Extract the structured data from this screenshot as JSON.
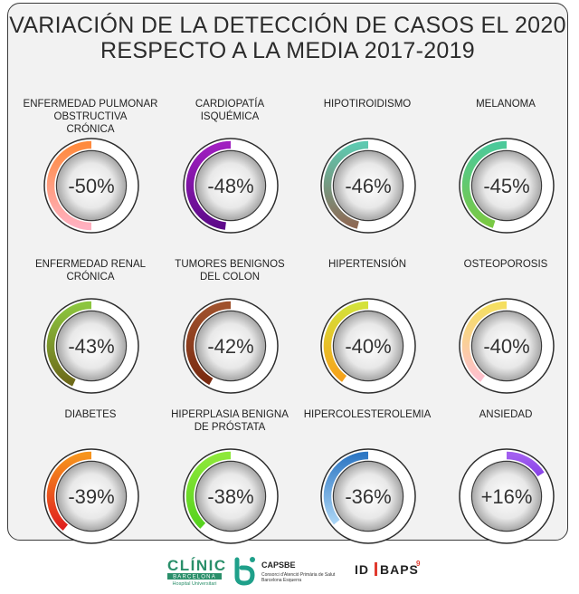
{
  "chart_data": {
    "type": "donut-grid",
    "title_lines": [
      "VARIACIÓN DE LA DETECCIÓN DE CASOS EL 2020",
      "RESPECTO A LA MEDIA 2017-2019"
    ],
    "items": [
      {
        "label_lines": [
          "ENFERMEDAD PULMONAR",
          "OBSTRUCTIVA",
          "CRÓNICA"
        ],
        "value": -50,
        "display": "-50%",
        "color_start": "#ff8a3d",
        "color_end": "#ffb0c0"
      },
      {
        "label_lines": [
          "CARDIOPATÍA",
          "ISQUÉMICA"
        ],
        "value": -48,
        "display": "-48%",
        "color_start": "#a01fc0",
        "color_end": "#5e0a8a"
      },
      {
        "label_lines": [
          "HIPOTIROIDISMO"
        ],
        "value": -46,
        "display": "-46%",
        "color_start": "#5ec9b0",
        "color_end": "#8e6a55"
      },
      {
        "label_lines": [
          "MELANOMA"
        ],
        "value": -45,
        "display": "-45%",
        "color_start": "#4cc99a",
        "color_end": "#7ac943"
      },
      {
        "label_lines": [
          "ENFERMEDAD RENAL",
          "CRÓNICA"
        ],
        "value": -43,
        "display": "-43%",
        "color_start": "#8cc63f",
        "color_end": "#6e6a1a"
      },
      {
        "label_lines": [
          "TUMORES BENIGNOS",
          "DEL COLON"
        ],
        "value": -42,
        "display": "-42%",
        "color_start": "#a0522d",
        "color_end": "#7a2a10"
      },
      {
        "label_lines": [
          "HIPERTENSIÓN"
        ],
        "value": -40,
        "display": "-40%",
        "color_start": "#d4e23a",
        "color_end": "#f7a21b"
      },
      {
        "label_lines": [
          "OSTEOPOROSIS"
        ],
        "value": -40,
        "display": "-40%",
        "color_start": "#f5df60",
        "color_end": "#ffc0cf"
      },
      {
        "label_lines": [
          "DIABETES"
        ],
        "value": -39,
        "display": "-39%",
        "color_start": "#f7941d",
        "color_end": "#e0201e"
      },
      {
        "label_lines": [
          "HIPERPLASIA BENIGNA",
          "DE PRÓSTATA"
        ],
        "value": -38,
        "display": "-38%",
        "color_start": "#8ee83a",
        "color_end": "#56d21e"
      },
      {
        "label_lines": [
          "HIPERCOLESTEROLEMIA"
        ],
        "value": -36,
        "display": "-36%",
        "color_start": "#2f78c4",
        "color_end": "#a9d4f5"
      },
      {
        "label_lines": [
          "ANSIEDAD"
        ],
        "value": 16,
        "display": "+16%",
        "color_start": "#a25ff0",
        "color_end": "#8a44e8"
      }
    ]
  },
  "footer": {
    "clinic": {
      "name": "CLÍNIC",
      "sub1": "BARCELONA",
      "sub2": "Hospital Universitari"
    },
    "capsbe": {
      "name": "CAPSBE",
      "sub1": "Consorci d'Atenció Primària de Salut",
      "sub2": "Barcelona Esquerra"
    },
    "idibaps": {
      "left": "ID",
      "right": "BAPS",
      "sup": "9"
    },
    "colors": {
      "clinic": "#2a8f6a",
      "capsbe": "#1fa08a",
      "idibaps": "#222222",
      "idibaps_accent": "#e03a2e"
    }
  }
}
